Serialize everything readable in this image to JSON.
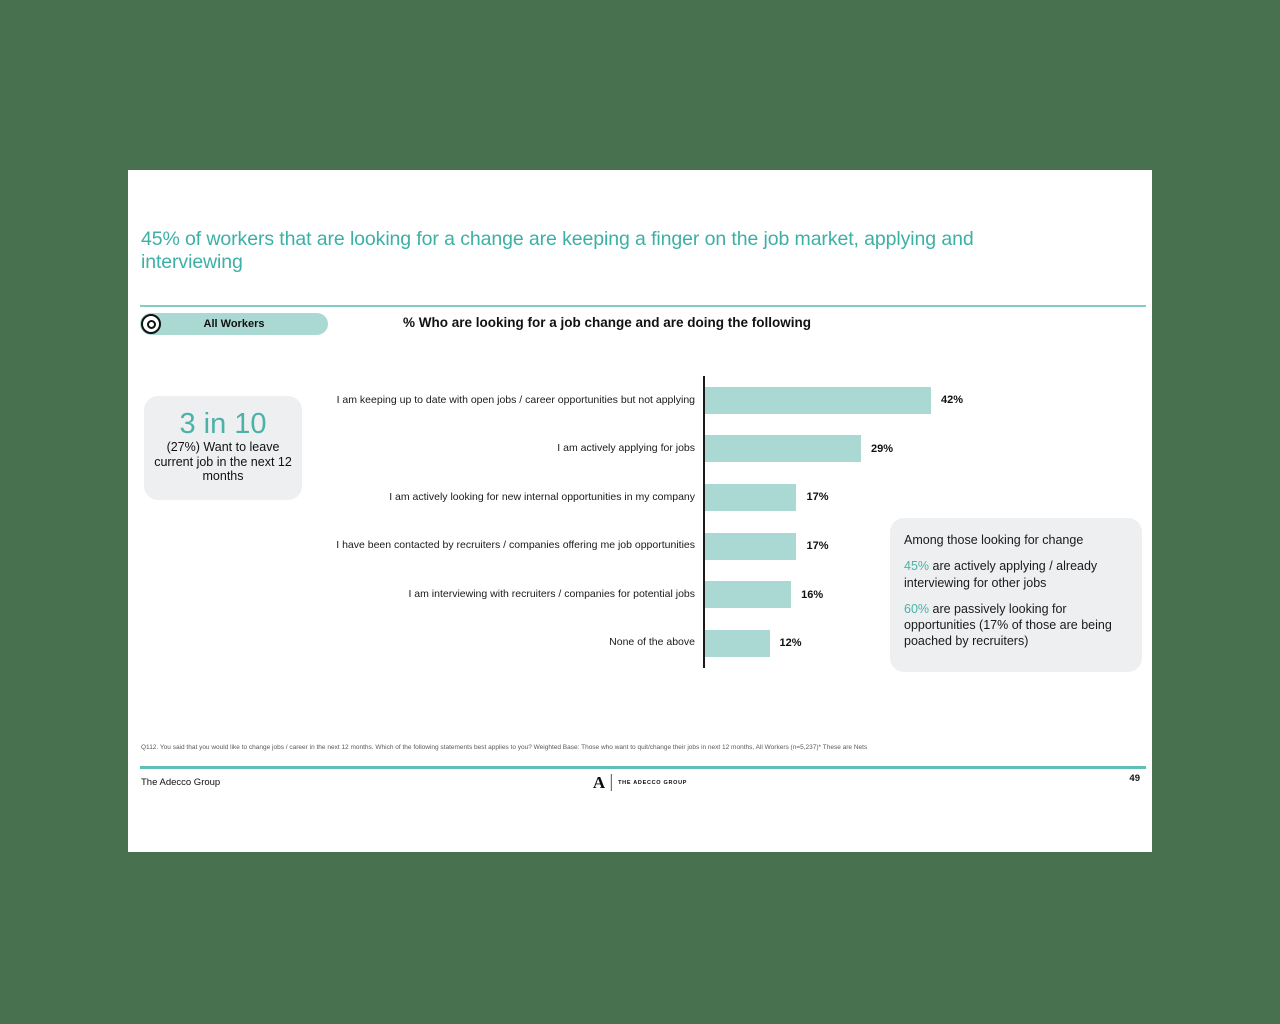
{
  "slide": {
    "title": "45% of workers that are looking for a change are keeping a finger on the job market, applying and interviewing",
    "accent_color": "#3db0a6",
    "bar_color": "#a9d9d2",
    "background_color": "#47714f"
  },
  "badge": {
    "label": "All Workers",
    "icon": "target-icon"
  },
  "callout": {
    "headline": "3 in 10",
    "body": "(27%) Want to leave current job in the next 12 months"
  },
  "chart_data": {
    "type": "bar",
    "orientation": "horizontal",
    "title": "% Who are looking for a job change and are doing the following",
    "categories": [
      "I am keeping up to date with open jobs / career opportunities but not applying",
      "I am actively applying for jobs",
      "I am actively looking for new internal opportunities in my company",
      "I have been contacted by recruiters / companies offering me job opportunities",
      "I am interviewing with recruiters / companies for potential jobs",
      "None of the above"
    ],
    "values": [
      42,
      29,
      17,
      17,
      16,
      12
    ],
    "value_labels": [
      "42%",
      "29%",
      "17%",
      "17%",
      "16%",
      "12%"
    ],
    "xlabel": "",
    "ylabel": "",
    "xlim": [
      0,
      45
    ],
    "grid": false,
    "legend": false,
    "axis_line": "left-vertical-black",
    "bar_color": "#a9d9d2"
  },
  "insight_box": {
    "intro": "Among those looking for change",
    "items": [
      {
        "highlight": "45%",
        "text": " are actively applying / already interviewing for other jobs"
      },
      {
        "highlight": "60%",
        "text": " are passively looking for opportunities (17% of those are being poached by recruiters)"
      }
    ]
  },
  "footnote": "Q112. You said that you would like to change jobs / career in the next 12 months. Which of the following statements best applies to you?  Weighted Base: Those who want to quit/change their jobs in next 12 months, All Workers (n=5,237)* These are Nets",
  "footer": {
    "left": "The Adecco Group",
    "logo_letter": "A",
    "logo_text": "THE ADECCO GROUP",
    "page_number": "49"
  }
}
